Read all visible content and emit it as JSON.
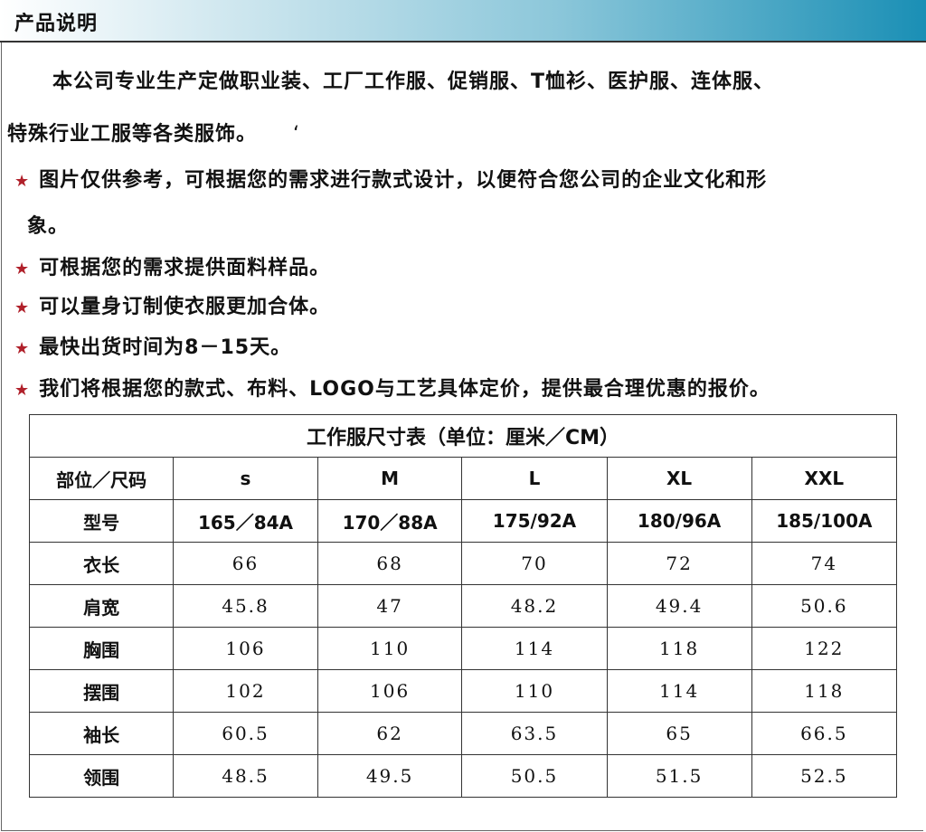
{
  "header": {
    "title": "产品说明"
  },
  "intro": {
    "line1": "本公司专业生产定做职业装、工厂工作服、促销服、T恤衫、医护服、连体服、",
    "line2": "特殊行业工服等各类服饰。",
    "mark": "‘"
  },
  "bullets": [
    {
      "icon": "star-icon",
      "text": "图片仅供参考，可根据您的需求进行款式设计，以便符合您公司的企业文化和形",
      "cont": "象。"
    },
    {
      "icon": "star-icon",
      "text": "可根据您的需求提供面料样品。"
    },
    {
      "icon": "star-icon",
      "text": "可以量身订制使衣服更加合体。"
    },
    {
      "icon": "star-icon",
      "text": "最快出货时间为8－15天。"
    },
    {
      "icon": "star-icon",
      "text": "我们将根据您的款式、布料、LOGO与工艺具体定价，提供最合理优惠的报价。"
    }
  ],
  "star_symbol": "★",
  "colors": {
    "star": "#b0202a",
    "header_gradient_end": "#1a8fb5"
  },
  "table": {
    "title": "工作服尺寸表（单位：厘米／CM）",
    "headers": [
      "部位／尺码",
      "s",
      "M",
      "L",
      "XL",
      "XXL"
    ],
    "rows": [
      {
        "label": "型号",
        "values": [
          "165／84A",
          "170／88A",
          "175/92A",
          "180/96A",
          "185/100A"
        ]
      },
      {
        "label": "衣长",
        "values": [
          "66",
          "68",
          "70",
          "72",
          "74"
        ]
      },
      {
        "label": "肩宽",
        "values": [
          "45.8",
          "47",
          "48.2",
          "49.4",
          "50.6"
        ]
      },
      {
        "label": "胸围",
        "values": [
          "106",
          "110",
          "114",
          "118",
          "122"
        ]
      },
      {
        "label": "摆围",
        "values": [
          "102",
          "106",
          "110",
          "114",
          "118"
        ]
      },
      {
        "label": "袖长",
        "values": [
          "60.5",
          "62",
          "63.5",
          "65",
          "66.5"
        ]
      },
      {
        "label": "领围",
        "values": [
          "48.5",
          "49.5",
          "50.5",
          "51.5",
          "52.5"
        ]
      }
    ]
  }
}
